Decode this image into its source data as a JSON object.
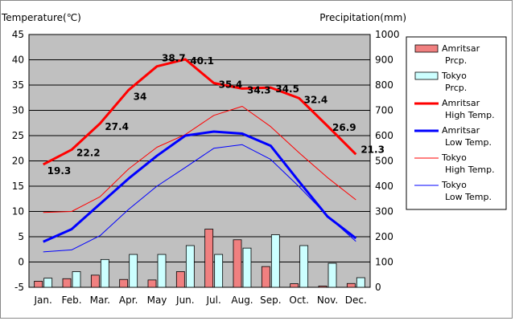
{
  "chart_data": {
    "type": "bar+line",
    "left_axis_title": "Temperature(℃)",
    "right_axis_title": "Precipitation(mm)",
    "categories": [
      "Jan.",
      "Feb.",
      "Mar.",
      "Apr.",
      "May",
      "Jun.",
      "Jul.",
      "Aug.",
      "Sep.",
      "Oct.",
      "Nov.",
      "Dec."
    ],
    "y_left": {
      "min": -5,
      "max": 45,
      "ticks": [
        -5,
        0,
        5,
        10,
        15,
        20,
        25,
        30,
        35,
        40,
        45
      ]
    },
    "y_right": {
      "min": 0,
      "max": 1000,
      "ticks": [
        0,
        100,
        200,
        300,
        400,
        500,
        600,
        700,
        800,
        900,
        1000
      ]
    },
    "grid": true,
    "legend_position": "right",
    "series": [
      {
        "name": "Amritsar Prcp.",
        "legend": [
          "Amritsar",
          "Prcp."
        ],
        "kind": "bar",
        "axis": "right",
        "color": "#f08080",
        "values": [
          24,
          34,
          48,
          31,
          29,
          62,
          230,
          188,
          82,
          14,
          5,
          15
        ]
      },
      {
        "name": "Tokyo Prcp.",
        "legend": [
          "Tokyo",
          "Prcp."
        ],
        "kind": "bar",
        "axis": "right",
        "color": "#ccffff",
        "values": [
          36,
          62,
          110,
          130,
          130,
          165,
          130,
          155,
          208,
          165,
          95,
          38
        ]
      },
      {
        "name": "Amritsar High Temp.",
        "legend": [
          "Amritsar",
          "High Temp."
        ],
        "kind": "line",
        "axis": "left",
        "color": "#ff0000",
        "width": 3,
        "values": [
          19.3,
          22.2,
          27.4,
          34,
          38.7,
          40.1,
          35.4,
          34.3,
          34.5,
          32.4,
          26.9,
          21.3
        ],
        "labels": [
          "19.3",
          "22.2",
          "27.4",
          "34",
          "38.7",
          "40.1",
          "35.4",
          "34.3",
          "34.5",
          "32.4",
          "26.9",
          "21.3"
        ]
      },
      {
        "name": "Amritsar Low Temp.",
        "legend": [
          "Amritsar",
          "Low Temp."
        ],
        "kind": "line",
        "axis": "left",
        "color": "#0000ff",
        "width": 3,
        "values": [
          4.0,
          6.5,
          11.5,
          16.5,
          21.0,
          25.0,
          25.8,
          25.4,
          23.0,
          15.9,
          9.0,
          4.7
        ]
      },
      {
        "name": "Tokyo High Temp.",
        "legend": [
          "Tokyo",
          "High Temp."
        ],
        "kind": "line",
        "axis": "left",
        "color": "#ff0000",
        "width": 1,
        "values": [
          9.8,
          10.0,
          12.9,
          18.4,
          22.7,
          25.2,
          29.0,
          30.8,
          26.8,
          21.6,
          16.7,
          12.3
        ]
      },
      {
        "name": "Tokyo Low Temp.",
        "legend": [
          "Tokyo",
          "Low Temp."
        ],
        "kind": "line",
        "axis": "left",
        "color": "#0000ff",
        "width": 1,
        "values": [
          2.0,
          2.4,
          5.2,
          10.4,
          15.0,
          18.7,
          22.5,
          23.2,
          20.3,
          14.9,
          9.1,
          4.1
        ]
      }
    ]
  }
}
